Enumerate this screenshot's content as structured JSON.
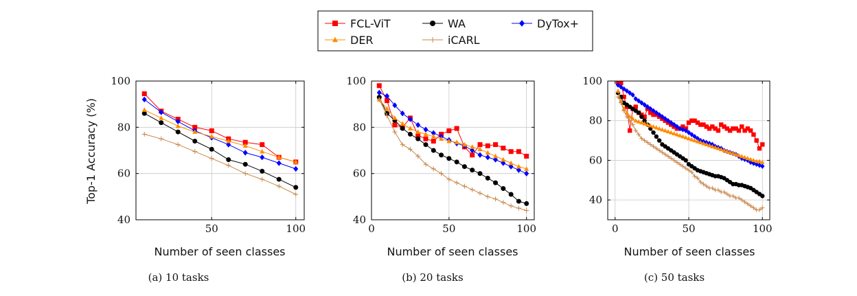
{
  "legend": {
    "entries": [
      {
        "name": "FCL-ViT",
        "color": "#ff0000",
        "marker": "square"
      },
      {
        "name": "WA",
        "color": "#000000",
        "marker": "circle"
      },
      {
        "name": "DyTox+",
        "color": "#0000ff",
        "marker": "diamond"
      },
      {
        "name": "DER",
        "color": "#ff8c00",
        "marker": "triangle"
      },
      {
        "name": "iCARL",
        "color": "#c8864a",
        "marker": "plus"
      }
    ]
  },
  "chart_data": [
    {
      "type": "line",
      "caption": "(a) 10 tasks",
      "xlabel": "Number of seen classes",
      "ylabel": "Top-1 Accuracy (%)",
      "xlim": [
        5,
        105
      ],
      "ylim": [
        40,
        100
      ],
      "xticks": [
        50,
        100
      ],
      "yticks": [
        40,
        60,
        80,
        100
      ],
      "grid": true,
      "series": [
        {
          "name": "FCL-ViT",
          "x": [
            10,
            20,
            30,
            40,
            50,
            60,
            70,
            80,
            90,
            100
          ],
          "y": [
            94.5,
            87,
            83.5,
            80,
            78.5,
            75,
            73.5,
            72.5,
            67,
            65
          ]
        },
        {
          "name": "WA",
          "x": [
            10,
            20,
            30,
            40,
            50,
            60,
            70,
            80,
            90,
            100
          ],
          "y": [
            86,
            82,
            78,
            74,
            70.5,
            66,
            64,
            61,
            57.5,
            54
          ]
        },
        {
          "name": "DyTox+",
          "x": [
            10,
            20,
            30,
            40,
            50,
            60,
            70,
            80,
            90,
            100
          ],
          "y": [
            92,
            86.5,
            82.5,
            78.5,
            75.5,
            72.5,
            69,
            67,
            64.5,
            62
          ]
        },
        {
          "name": "DER",
          "x": [
            10,
            20,
            30,
            40,
            50,
            60,
            70,
            80,
            90,
            100
          ],
          "y": [
            87.5,
            84,
            80.5,
            78,
            76,
            74,
            72,
            69.5,
            67,
            65
          ]
        },
        {
          "name": "iCARL",
          "x": [
            10,
            20,
            30,
            40,
            50,
            60,
            70,
            80,
            90,
            100
          ],
          "y": [
            77,
            75,
            72.5,
            69.5,
            66.5,
            63.5,
            60,
            57.5,
            54.5,
            51
          ]
        }
      ]
    },
    {
      "type": "line",
      "caption": "(b) 20 tasks",
      "xlabel": "Number of seen classes",
      "ylabel": "",
      "xlim": [
        0,
        105
      ],
      "ylim": [
        40,
        100
      ],
      "xticks": [
        0,
        50,
        100
      ],
      "yticks": [
        40,
        60,
        80,
        100
      ],
      "grid": true,
      "series": [
        {
          "name": "FCL-ViT",
          "x": [
            5,
            10,
            15,
            20,
            25,
            30,
            35,
            40,
            45,
            50,
            55,
            60,
            65,
            70,
            75,
            80,
            85,
            90,
            95,
            100
          ],
          "y": [
            98,
            91.5,
            81,
            80,
            84,
            76.5,
            75,
            74,
            77,
            78.5,
            79.5,
            71.5,
            68,
            72.5,
            72,
            72.5,
            71,
            69.5,
            69.5,
            67.5
          ]
        },
        {
          "name": "WA",
          "x": [
            5,
            10,
            15,
            20,
            25,
            30,
            35,
            40,
            45,
            50,
            55,
            60,
            65,
            70,
            75,
            80,
            85,
            90,
            95,
            100
          ],
          "y": [
            93,
            86,
            83,
            79.5,
            77,
            75,
            72.5,
            70,
            68,
            66.5,
            65,
            63,
            61.5,
            60,
            58,
            56,
            53.5,
            51,
            48,
            47
          ]
        },
        {
          "name": "DyTox+",
          "x": [
            5,
            10,
            15,
            20,
            25,
            30,
            35,
            40,
            45,
            50,
            55,
            60,
            65,
            70,
            75,
            80,
            85,
            90,
            95,
            100
          ],
          "y": [
            95,
            93.5,
            89.5,
            86,
            83.5,
            81,
            79,
            77.5,
            76,
            74.5,
            73,
            72,
            70,
            68,
            67,
            66,
            64.5,
            63,
            61.5,
            60
          ]
        },
        {
          "name": "DER",
          "x": [
            5,
            10,
            15,
            20,
            25,
            30,
            35,
            40,
            45,
            50,
            55,
            60,
            65,
            70,
            75,
            80,
            85,
            90,
            95,
            100
          ],
          "y": [
            92,
            88,
            84,
            81.5,
            79.5,
            78,
            77,
            76,
            75,
            74,
            73.5,
            72.5,
            71.5,
            70.5,
            69,
            67.5,
            66,
            64.5,
            63,
            62
          ]
        },
        {
          "name": "iCARL",
          "x": [
            5,
            10,
            15,
            20,
            25,
            30,
            35,
            40,
            45,
            50,
            55,
            60,
            65,
            70,
            75,
            80,
            85,
            90,
            95,
            100
          ],
          "y": [
            92,
            85,
            78,
            72.5,
            70.5,
            67.5,
            64,
            62,
            60,
            57.5,
            56,
            54.5,
            53,
            51.5,
            50,
            49,
            47.5,
            46,
            45,
            44
          ]
        }
      ]
    },
    {
      "type": "line",
      "caption": "(c) 50 tasks",
      "xlabel": "Number of seen classes",
      "ylabel": "",
      "xlim": [
        -5,
        105
      ],
      "ylim": [
        30,
        100
      ],
      "xticks": [
        0,
        50,
        100
      ],
      "yticks": [
        40,
        60,
        80,
        100
      ],
      "grid": true,
      "series": [
        {
          "name": "FCL-ViT",
          "x": [
            2,
            4,
            6,
            8,
            10,
            12,
            14,
            16,
            18,
            20,
            22,
            24,
            26,
            28,
            30,
            32,
            34,
            36,
            38,
            40,
            42,
            44,
            46,
            48,
            50,
            52,
            54,
            56,
            58,
            60,
            62,
            64,
            66,
            68,
            70,
            72,
            74,
            76,
            78,
            80,
            82,
            84,
            86,
            88,
            90,
            92,
            94,
            96,
            98,
            100
          ],
          "y": [
            99,
            99,
            92,
            87,
            75,
            86,
            87,
            84,
            83,
            82,
            86,
            84,
            83,
            83,
            82,
            81,
            80,
            79,
            78,
            77,
            76,
            76,
            77,
            76,
            79,
            80,
            80,
            79,
            78,
            78,
            77,
            76,
            77,
            76,
            75,
            78,
            77,
            76,
            75,
            76,
            76,
            75,
            77,
            75,
            76,
            75,
            73,
            70,
            66,
            68
          ]
        },
        {
          "name": "WA",
          "x": [
            2,
            4,
            6,
            8,
            10,
            12,
            14,
            16,
            18,
            20,
            22,
            24,
            26,
            28,
            30,
            32,
            34,
            36,
            38,
            40,
            42,
            44,
            46,
            48,
            50,
            52,
            54,
            56,
            58,
            60,
            62,
            64,
            66,
            68,
            70,
            72,
            74,
            76,
            78,
            80,
            82,
            84,
            86,
            88,
            90,
            92,
            94,
            96,
            98,
            100
          ],
          "y": [
            94,
            92,
            89,
            88,
            87,
            86,
            85,
            84,
            82,
            80,
            78,
            76,
            74,
            72,
            70,
            68,
            67,
            66,
            65,
            64,
            63,
            62,
            61,
            60,
            58,
            57,
            56,
            55,
            54.5,
            54,
            53.5,
            53,
            52.5,
            52,
            52,
            51.5,
            51,
            50,
            49,
            48,
            48,
            47.5,
            47.5,
            47,
            46.5,
            46,
            45,
            44,
            43,
            42
          ]
        },
        {
          "name": "DyTox+",
          "x": [
            2,
            4,
            6,
            8,
            10,
            12,
            14,
            16,
            18,
            20,
            22,
            24,
            26,
            28,
            30,
            32,
            34,
            36,
            38,
            40,
            42,
            44,
            46,
            48,
            50,
            52,
            54,
            56,
            58,
            60,
            62,
            64,
            66,
            68,
            70,
            72,
            74,
            76,
            78,
            80,
            82,
            84,
            86,
            88,
            90,
            92,
            94,
            96,
            98,
            100
          ],
          "y": [
            98,
            97,
            96,
            95,
            94,
            93,
            91,
            90,
            89,
            88,
            87,
            86,
            85,
            84,
            83,
            82,
            81,
            80,
            79,
            78,
            77,
            76,
            75.5,
            75,
            74,
            73,
            72,
            71,
            70,
            69.5,
            69,
            68.5,
            68,
            67,
            66.5,
            66,
            65,
            64.5,
            64,
            63.5,
            63,
            62,
            61,
            60.5,
            60,
            59,
            58.5,
            58,
            57.5,
            57
          ]
        },
        {
          "name": "DER",
          "x": [
            2,
            4,
            6,
            8,
            10,
            12,
            14,
            16,
            18,
            20,
            22,
            24,
            26,
            28,
            30,
            32,
            34,
            36,
            38,
            40,
            42,
            44,
            46,
            48,
            50,
            52,
            54,
            56,
            58,
            60,
            62,
            64,
            66,
            68,
            70,
            72,
            74,
            76,
            78,
            80,
            82,
            84,
            86,
            88,
            90,
            92,
            94,
            96,
            98,
            100
          ],
          "y": [
            95,
            90,
            86,
            84,
            82,
            81,
            80,
            79.5,
            79,
            78.5,
            78,
            77.5,
            77,
            76.5,
            76,
            75.5,
            75,
            74.5,
            74,
            73.5,
            73,
            72.5,
            72,
            71.5,
            71,
            70.5,
            70,
            69.5,
            69,
            68.5,
            68,
            67.5,
            67,
            66.5,
            66,
            65.5,
            65,
            64.5,
            64,
            63.5,
            63,
            62.5,
            62,
            61.5,
            61,
            60.5,
            60,
            59.5,
            59.5,
            59
          ]
        },
        {
          "name": "iCARL",
          "x": [
            2,
            4,
            6,
            8,
            10,
            12,
            14,
            16,
            18,
            20,
            22,
            24,
            26,
            28,
            30,
            32,
            34,
            36,
            38,
            40,
            42,
            44,
            46,
            48,
            50,
            52,
            54,
            56,
            58,
            60,
            62,
            64,
            66,
            68,
            70,
            72,
            74,
            76,
            78,
            80,
            82,
            84,
            86,
            88,
            90,
            92,
            94,
            96,
            98,
            100
          ],
          "y": [
            92,
            89,
            85,
            82,
            80,
            78,
            75,
            73,
            71,
            70,
            69,
            68,
            67,
            66,
            65,
            64,
            63,
            62,
            61,
            60,
            59,
            58,
            57,
            56,
            55,
            54,
            52,
            51,
            49,
            48,
            47,
            46,
            46,
            45,
            45,
            44,
            44,
            43,
            42,
            42,
            41,
            41,
            40,
            39,
            38,
            37,
            36,
            35,
            35,
            36
          ]
        }
      ]
    }
  ]
}
